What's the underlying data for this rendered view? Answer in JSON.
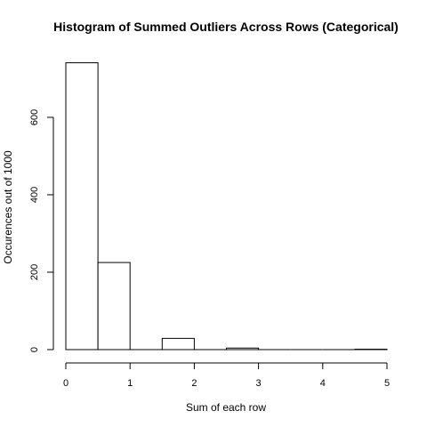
{
  "chart_data": {
    "type": "bar",
    "title": "Histogram of Summed Outliers Across Rows (Categorical)",
    "xlabel": "Sum of each row",
    "ylabel": "Occurences out of 1000",
    "xlim": [
      0,
      5
    ],
    "ylim": [
      0,
      740
    ],
    "grid": false,
    "bins": [
      {
        "start": 0.0,
        "end": 0.5,
        "count": 741
      },
      {
        "start": 0.5,
        "end": 1.0,
        "count": 225
      },
      {
        "start": 1.0,
        "end": 1.5,
        "count": 0
      },
      {
        "start": 1.5,
        "end": 2.0,
        "count": 29
      },
      {
        "start": 2.0,
        "end": 2.5,
        "count": 0
      },
      {
        "start": 2.5,
        "end": 3.0,
        "count": 4
      },
      {
        "start": 3.0,
        "end": 3.5,
        "count": 0
      },
      {
        "start": 3.5,
        "end": 4.0,
        "count": 0
      },
      {
        "start": 4.0,
        "end": 4.5,
        "count": 0
      },
      {
        "start": 4.5,
        "end": 5.0,
        "count": 1
      }
    ],
    "x_ticks": [
      {
        "value": 0,
        "label": "0"
      },
      {
        "value": 1,
        "label": "1"
      },
      {
        "value": 2,
        "label": "2"
      },
      {
        "value": 3,
        "label": "3"
      },
      {
        "value": 4,
        "label": "4"
      },
      {
        "value": 5,
        "label": "5"
      }
    ],
    "y_ticks": [
      {
        "value": 0,
        "label": "0"
      },
      {
        "value": 200,
        "label": "200"
      },
      {
        "value": 400,
        "label": "400"
      },
      {
        "value": 600,
        "label": "600"
      }
    ]
  }
}
